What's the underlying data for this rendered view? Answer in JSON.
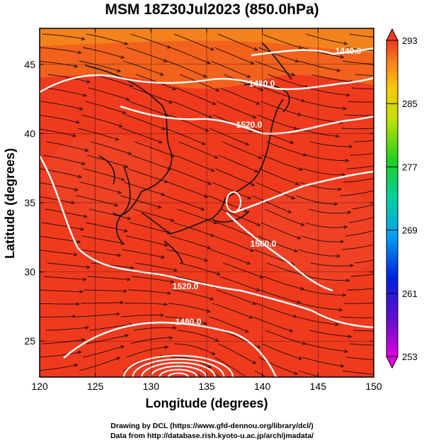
{
  "title": "MSM 18Z30Jul2023 (850.0hPa)",
  "x_axis_label": "Longitude (degrees)",
  "y_axis_label": "Latitude  (degrees)",
  "x_ticks": [
    "120",
    "125",
    "130",
    "135",
    "140",
    "145",
    "150"
  ],
  "y_ticks": [
    "25",
    "30",
    "35",
    "40",
    "45"
  ],
  "colorbar_ticks": [
    "293",
    "285",
    "277",
    "269",
    "261",
    "253"
  ],
  "contour_labels": [
    "1440.0",
    "1480.0",
    "1520.0",
    "1560.0",
    "1520.0",
    "1480.0"
  ],
  "footer_line1": "Drawing by DCL (https://www.gfd-dennou.org/library/dcl/)",
  "footer_line2": "Data from http://database.rish.kyoto-u.ac.jp/arch/jmadata/",
  "colors": {
    "field_main": "#f03a1e",
    "field_warm": "#ee4b26",
    "field_north": "#f07a1c",
    "contour": "#ffffff",
    "streamline": "#1a0d0a",
    "coast": "#111111"
  },
  "chart_data": {
    "type": "heatmap",
    "title": "MSM 18Z30Jul2023 (850.0hPa)",
    "xlabel": "Longitude (degrees)",
    "ylabel": "Latitude  (degrees)",
    "xlim": [
      120,
      150
    ],
    "ylim": [
      22.4,
      47.6
    ],
    "colorbar": {
      "min": 253,
      "max": 293,
      "ticks": [
        293,
        285,
        277,
        269,
        261,
        253
      ]
    },
    "contours": [
      1440.0,
      1480.0,
      1520.0,
      1560.0,
      1520.0,
      1480.0
    ]
  }
}
